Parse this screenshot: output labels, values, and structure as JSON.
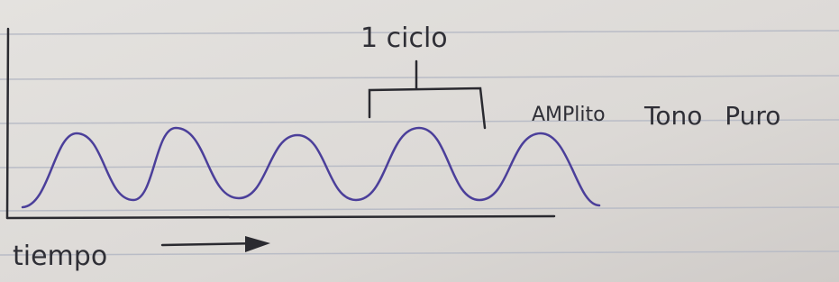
{
  "labels": {
    "cycle": "1 ciclo",
    "amplitude": "AMPlito",
    "tone": "Tono Puro",
    "time": "tiempo"
  }
}
